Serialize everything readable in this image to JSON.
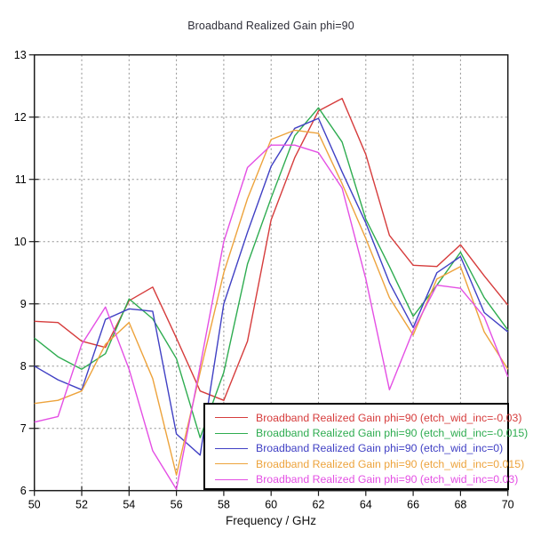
{
  "chart_data": {
    "type": "line",
    "title": "Broadband Realized Gain phi=90",
    "xlabel": "Frequency / GHz",
    "ylabel": "",
    "xlim": [
      50,
      70
    ],
    "ylim": [
      6,
      13
    ],
    "xticks": [
      50,
      52,
      54,
      56,
      58,
      60,
      62,
      64,
      66,
      68,
      70
    ],
    "yticks": [
      6,
      7,
      8,
      9,
      10,
      11,
      12,
      13
    ],
    "grid": true,
    "grid_style": "dotted",
    "legend_position": "bottom-right",
    "x": [
      50,
      51,
      52,
      53,
      54,
      55,
      56,
      57,
      58,
      59,
      60,
      61,
      62,
      63,
      64,
      65,
      66,
      67,
      68,
      69,
      70
    ],
    "series": [
      {
        "name": "Broadband Realized Gain phi=90 (etch_wid_inc=-0.03)",
        "color": "#d63c3c",
        "values": [
          8.72,
          8.7,
          8.4,
          8.3,
          9.05,
          9.27,
          8.45,
          7.6,
          7.45,
          8.4,
          10.35,
          11.35,
          12.1,
          12.3,
          11.4,
          10.1,
          9.62,
          9.6,
          9.95,
          9.45,
          8.98
        ]
      },
      {
        "name": "Broadband Realized Gain phi=90 (etch_wid_inc=-0.015)",
        "color": "#2eac50",
        "values": [
          8.45,
          8.15,
          7.95,
          8.2,
          9.08,
          8.76,
          8.12,
          6.85,
          7.9,
          9.64,
          10.7,
          11.7,
          12.15,
          11.6,
          10.36,
          9.6,
          8.8,
          9.3,
          9.83,
          9.1,
          8.58
        ]
      },
      {
        "name": "Broadband Realized Gain phi=90 (etch_wid_inc=0)",
        "color": "#4040c4",
        "values": [
          8.0,
          7.78,
          7.62,
          8.75,
          8.92,
          8.88,
          6.91,
          6.57,
          9.0,
          10.15,
          11.21,
          11.82,
          11.98,
          11.12,
          10.3,
          9.34,
          8.62,
          9.5,
          9.76,
          8.86,
          8.55
        ]
      },
      {
        "name": "Broadband Realized Gain phi=90 (etch_wid_inc=0.015)",
        "color": "#eda33c",
        "values": [
          7.4,
          7.45,
          7.6,
          8.35,
          8.7,
          7.8,
          6.25,
          7.9,
          9.5,
          10.69,
          11.64,
          11.79,
          11.74,
          10.93,
          10.05,
          9.1,
          8.5,
          9.4,
          9.6,
          8.55,
          7.95
        ]
      },
      {
        "name": "Broadband Realized Gain phi=90 (etch_wid_inc=0.03)",
        "color": "#e44fe4",
        "values": [
          7.1,
          7.19,
          8.35,
          8.95,
          7.95,
          6.64,
          6.02,
          8.0,
          10.0,
          11.19,
          11.55,
          11.55,
          11.43,
          10.86,
          9.4,
          7.62,
          8.57,
          9.3,
          9.25,
          8.79,
          7.83
        ]
      }
    ],
    "axis_color": "#1c1c1c",
    "grid_color": "#8f8f8f",
    "title_color": "#2e2e38"
  }
}
